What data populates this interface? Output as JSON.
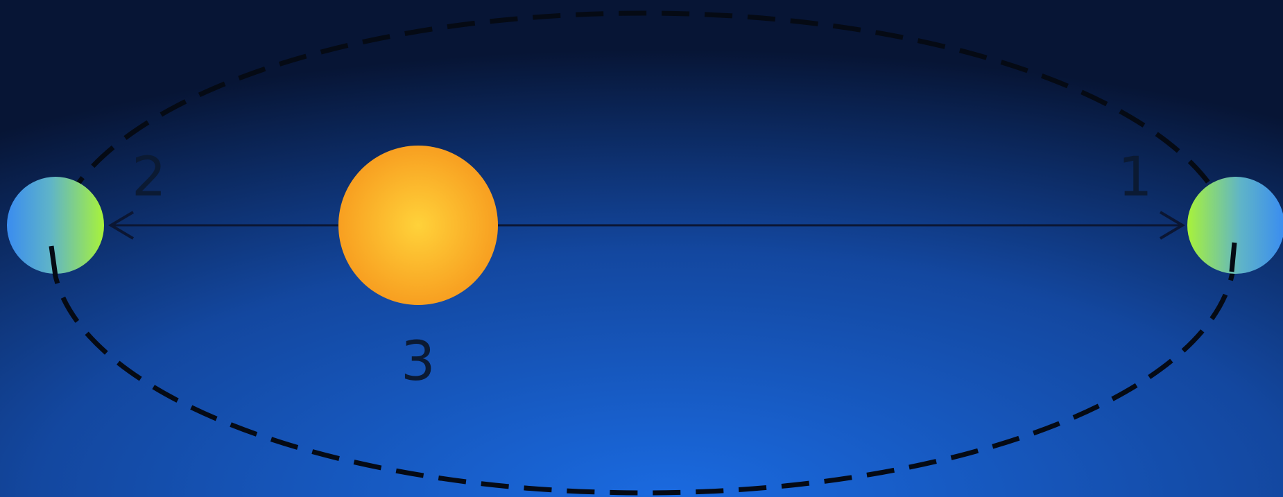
{
  "colors": {
    "background_center": "#1a6ae0",
    "background_edge": "#071535",
    "orbit": "#050a14",
    "axis_line": "#0b1633",
    "sun_core": "#ffd23a",
    "sun_edge": "#f79a1e",
    "planet_green": "#a8f23a",
    "planet_blue": "#3a8cf0",
    "label": "#0b1a33"
  },
  "labels": {
    "aphelion": "2",
    "perihelion": "1",
    "sun": "3"
  }
}
